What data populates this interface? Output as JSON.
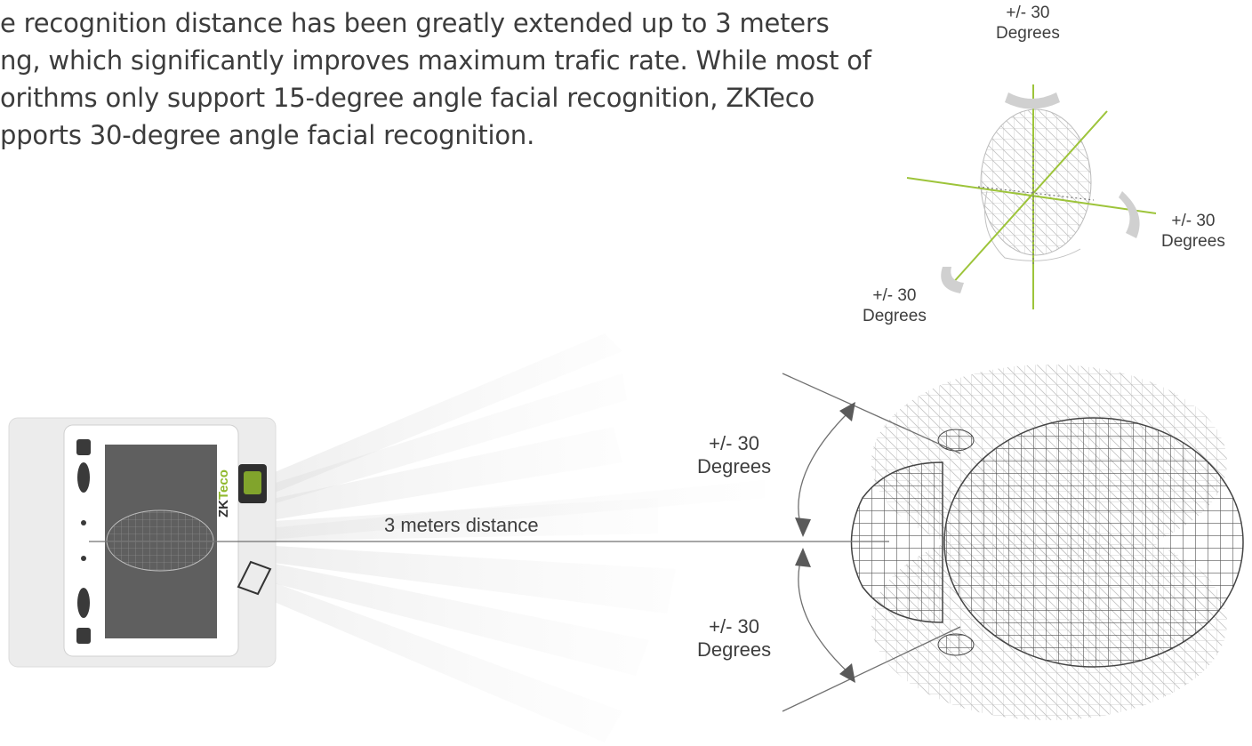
{
  "intro": {
    "line1": "e recognition distance has been greatly extended up to 3 meters",
    "line2": "ng, which significantly improves maximum trafic rate. While most of",
    "line3": "orithms only support 15-degree angle facial recognition, ZKTeco",
    "line4": "pports 30-degree angle facial recognition."
  },
  "small_diagram": {
    "top": {
      "value": "+/- 30",
      "unit": "Degrees"
    },
    "right": {
      "value": "+/- 30",
      "unit": "Degrees"
    },
    "bottom_left": {
      "value": "+/- 30",
      "unit": "Degrees"
    }
  },
  "main_diagram": {
    "upper_angle": {
      "value": "+/- 30",
      "unit": "Degrees"
    },
    "lower_angle": {
      "value": "+/- 30",
      "unit": "Degrees"
    },
    "distance": "3 meters distance"
  },
  "device": {
    "brand_prefix": "ZK",
    "brand_suffix": "Teco"
  },
  "colors": {
    "axis_green": "#9dc43a",
    "text": "#3c3c3c",
    "line": "#707070"
  }
}
